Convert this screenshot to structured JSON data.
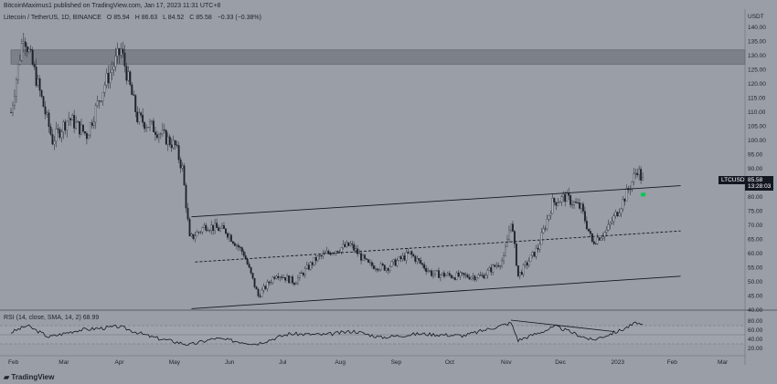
{
  "header": {
    "publisher_line": "BitcoinMaximus1 published on TradingView.com, Jan 17, 2023 11:31 UTC+8",
    "symbol": "Litecoin / TetherUS, 1D, BINANCE",
    "ohlc": [
      "O 85.94",
      "H 86.63",
      "L 84.52",
      "C 85.58",
      "−0.33 (−0.38%)"
    ],
    "rsi_label": "RSI (14, close, SMA, 14, 2)",
    "rsi_value": "68.99"
  },
  "price_axis": {
    "currency": "USDT",
    "last_price": "85.58",
    "countdown": "13:28:03",
    "symbol_tag": "LTCUSDT"
  },
  "rsi_axis": {
    "ticks": [
      "80.00",
      "60.00",
      "40.00",
      "20.00"
    ]
  },
  "branding": {
    "logo_text": "TradingView"
  },
  "colors": {
    "background": "#9a9ea6",
    "candle": "#1e222d",
    "zone": "#7c8088",
    "signal": "#00c853"
  },
  "chart_data": {
    "type": "candlestick",
    "title": "Litecoin / TetherUS, 1D, BINANCE",
    "y_ticks": [
      40,
      45,
      50,
      55,
      60,
      65,
      70,
      75,
      80,
      85,
      90,
      95,
      100,
      105,
      110,
      115,
      120,
      125,
      130,
      135,
      140
    ],
    "ylim": [
      40,
      145
    ],
    "x_ticks": [
      "Feb",
      "Mar",
      "Apr",
      "May",
      "Jun",
      "Jul",
      "Aug",
      "Sep",
      "Oct",
      "Nov",
      "Dec",
      "2023",
      "Feb",
      "Mar"
    ],
    "price_path": [
      {
        "d": "2022-02-01",
        "v": 110
      },
      {
        "d": "2022-02-08",
        "v": 138
      },
      {
        "d": "2022-02-15",
        "v": 122
      },
      {
        "d": "2022-02-24",
        "v": 100
      },
      {
        "d": "2022-03-05",
        "v": 108
      },
      {
        "d": "2022-03-15",
        "v": 102
      },
      {
        "d": "2022-03-25",
        "v": 120
      },
      {
        "d": "2022-04-03",
        "v": 132
      },
      {
        "d": "2022-04-12",
        "v": 108
      },
      {
        "d": "2022-04-22",
        "v": 104
      },
      {
        "d": "2022-05-03",
        "v": 98
      },
      {
        "d": "2022-05-07",
        "v": 90
      },
      {
        "d": "2022-05-11",
        "v": 65
      },
      {
        "d": "2022-05-20",
        "v": 70
      },
      {
        "d": "2022-05-31",
        "v": 68
      },
      {
        "d": "2022-06-10",
        "v": 60
      },
      {
        "d": "2022-06-18",
        "v": 45
      },
      {
        "d": "2022-06-28",
        "v": 53
      },
      {
        "d": "2022-07-08",
        "v": 50
      },
      {
        "d": "2022-07-20",
        "v": 58
      },
      {
        "d": "2022-07-29",
        "v": 61
      },
      {
        "d": "2022-08-08",
        "v": 63
      },
      {
        "d": "2022-08-18",
        "v": 56
      },
      {
        "d": "2022-08-28",
        "v": 55
      },
      {
        "d": "2022-09-10",
        "v": 60
      },
      {
        "d": "2022-09-22",
        "v": 53
      },
      {
        "d": "2022-10-05",
        "v": 52
      },
      {
        "d": "2022-10-20",
        "v": 52
      },
      {
        "d": "2022-11-01",
        "v": 58
      },
      {
        "d": "2022-11-05",
        "v": 72
      },
      {
        "d": "2022-11-09",
        "v": 52
      },
      {
        "d": "2022-11-20",
        "v": 62
      },
      {
        "d": "2022-11-28",
        "v": 78
      },
      {
        "d": "2022-12-05",
        "v": 80
      },
      {
        "d": "2022-12-14",
        "v": 76
      },
      {
        "d": "2022-12-20",
        "v": 64
      },
      {
        "d": "2022-12-28",
        "v": 68
      },
      {
        "d": "2023-01-04",
        "v": 76
      },
      {
        "d": "2023-01-10",
        "v": 84
      },
      {
        "d": "2023-01-14",
        "v": 90
      },
      {
        "d": "2023-01-17",
        "v": 85.58
      }
    ],
    "channel": {
      "upper": [
        {
          "d": "2022-05-12",
          "v": 73
        },
        {
          "d": "2023-02-07",
          "v": 84
        }
      ],
      "middle": [
        {
          "d": "2022-05-14",
          "v": 57
        },
        {
          "d": "2023-02-07",
          "v": 68
        }
      ],
      "lower": [
        {
          "d": "2022-05-12",
          "v": 40.5
        },
        {
          "d": "2023-02-07",
          "v": 52
        }
      ]
    },
    "resistance_zone": [
      127,
      132
    ],
    "rsi": {
      "levels": [
        70,
        50,
        30
      ],
      "path": [
        {
          "d": "2022-02-01",
          "v": 55
        },
        {
          "d": "2022-02-10",
          "v": 70
        },
        {
          "d": "2022-02-22",
          "v": 45
        },
        {
          "d": "2022-03-10",
          "v": 60
        },
        {
          "d": "2022-04-02",
          "v": 68
        },
        {
          "d": "2022-04-20",
          "v": 45
        },
        {
          "d": "2022-05-11",
          "v": 28
        },
        {
          "d": "2022-05-25",
          "v": 42
        },
        {
          "d": "2022-06-17",
          "v": 30
        },
        {
          "d": "2022-07-05",
          "v": 52
        },
        {
          "d": "2022-07-25",
          "v": 50
        },
        {
          "d": "2022-08-10",
          "v": 58
        },
        {
          "d": "2022-08-25",
          "v": 44
        },
        {
          "d": "2022-09-15",
          "v": 52
        },
        {
          "d": "2022-10-10",
          "v": 48
        },
        {
          "d": "2022-11-05",
          "v": 76
        },
        {
          "d": "2022-11-09",
          "v": 38
        },
        {
          "d": "2022-11-30",
          "v": 68
        },
        {
          "d": "2022-12-20",
          "v": 38
        },
        {
          "d": "2023-01-05",
          "v": 60
        },
        {
          "d": "2023-01-14",
          "v": 77
        },
        {
          "d": "2023-01-17",
          "v": 68.99
        }
      ],
      "divergence_line": [
        {
          "d": "2022-11-05",
          "v": 82
        },
        {
          "d": "2023-01-01",
          "v": 57
        }
      ]
    }
  }
}
